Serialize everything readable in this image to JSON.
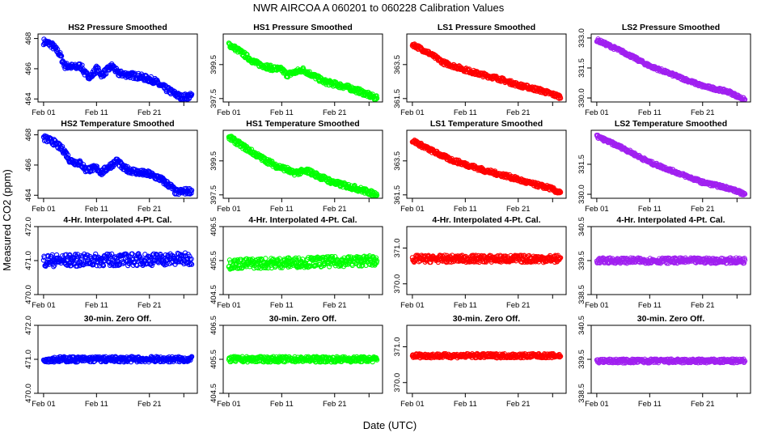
{
  "figure": {
    "title": "NWR   AIRCOA A   060201 to 060228   Calibration Values",
    "xlabel": "Date (UTC)",
    "ylabel": "Measured CO2 (ppm)"
  },
  "colors": {
    "HS2": "#0000ff",
    "HS1": "#00ff00",
    "LS1": "#ff0000",
    "LS2": "#a020f0"
  },
  "chart_data": [
    {
      "type": "scatter",
      "title": "HS2 Pressure Smoothed",
      "series": "HS2",
      "x_ticks": [
        "Feb 01",
        "Feb 11",
        "Feb 21"
      ],
      "x_range_days": [
        0,
        28
      ],
      "y_ticks": [
        "464",
        "466",
        "468"
      ],
      "ylim": [
        463.8,
        468.3
      ],
      "profile": [
        [
          0,
          467.8
        ],
        [
          1.5,
          467.6
        ],
        [
          3,
          467.0
        ],
        [
          4,
          466.2
        ],
        [
          6,
          466.1
        ],
        [
          7,
          466.2
        ],
        [
          8,
          465.6
        ],
        [
          9,
          465.5
        ],
        [
          10,
          466.0
        ],
        [
          11,
          465.6
        ],
        [
          13,
          466.2
        ],
        [
          14,
          465.7
        ],
        [
          16,
          465.6
        ],
        [
          18,
          465.5
        ],
        [
          20,
          465.3
        ],
        [
          21,
          465.2
        ],
        [
          22,
          464.9
        ],
        [
          24,
          464.5
        ],
        [
          26,
          464.1
        ],
        [
          28,
          464.2
        ]
      ],
      "noise": 0.2
    },
    {
      "type": "scatter",
      "title": "HS1 Pressure Smoothed",
      "series": "HS1",
      "x_ticks": [
        "Feb 01",
        "Feb 11",
        "Feb 21"
      ],
      "x_range_days": [
        0,
        28
      ],
      "y_ticks": [
        "397.5",
        "399.5"
      ],
      "ylim": [
        397.3,
        401.3
      ],
      "profile": [
        [
          0,
          400.7
        ],
        [
          2,
          400.3
        ],
        [
          5,
          399.6
        ],
        [
          8,
          399.3
        ],
        [
          10,
          399.2
        ],
        [
          11,
          398.9
        ],
        [
          14,
          399.2
        ],
        [
          18,
          398.5
        ],
        [
          22,
          398.2
        ],
        [
          25,
          397.9
        ],
        [
          28,
          397.5
        ]
      ],
      "noise": 0.15
    },
    {
      "type": "scatter",
      "title": "LS1 Pressure Smoothed",
      "series": "LS1",
      "x_ticks": [
        "Feb 01",
        "Feb 11",
        "Feb 21"
      ],
      "x_range_days": [
        0,
        28
      ],
      "y_ticks": [
        "361.5",
        "363.5"
      ],
      "ylim": [
        361.3,
        365.3
      ],
      "profile": [
        [
          0,
          364.7
        ],
        [
          3,
          364.2
        ],
        [
          6,
          363.6
        ],
        [
          9,
          363.3
        ],
        [
          12,
          363.0
        ],
        [
          16,
          362.7
        ],
        [
          20,
          362.3
        ],
        [
          24,
          362.0
        ],
        [
          28,
          361.6
        ]
      ],
      "noise": 0.12
    },
    {
      "type": "scatter",
      "title": "LS2 Pressure Smoothed",
      "series": "LS2",
      "x_ticks": [
        "Feb 01",
        "Feb 11",
        "Feb 21"
      ],
      "x_range_days": [
        0,
        28
      ],
      "y_ticks": [
        "330.0",
        "331.5",
        "333.0"
      ],
      "ylim": [
        329.8,
        333.2
      ],
      "profile": [
        [
          0,
          332.9
        ],
        [
          5,
          332.3
        ],
        [
          10,
          331.6
        ],
        [
          15,
          331.1
        ],
        [
          20,
          330.6
        ],
        [
          25,
          330.3
        ],
        [
          28,
          329.9
        ]
      ],
      "noise": 0.08
    },
    {
      "type": "scatter",
      "title": "HS2 Temperature Smoothed",
      "series": "HS2",
      "x_ticks": [
        "Feb 01",
        "Feb 11",
        "Feb 21"
      ],
      "x_range_days": [
        0,
        28
      ],
      "y_ticks": [
        "464",
        "466",
        "468"
      ],
      "ylim": [
        463.8,
        468.3
      ],
      "profile": [
        [
          0,
          467.8
        ],
        [
          2,
          467.5
        ],
        [
          4,
          466.9
        ],
        [
          5,
          466.3
        ],
        [
          7,
          466.1
        ],
        [
          8,
          465.7
        ],
        [
          10,
          465.8
        ],
        [
          11,
          465.5
        ],
        [
          12,
          465.8
        ],
        [
          14,
          466.3
        ],
        [
          15,
          465.8
        ],
        [
          18,
          465.5
        ],
        [
          20,
          465.4
        ],
        [
          22,
          465.1
        ],
        [
          24,
          464.6
        ],
        [
          25,
          464.2
        ],
        [
          28,
          464.3
        ]
      ],
      "noise": 0.2
    },
    {
      "type": "scatter",
      "title": "HS1 Temperature Smoothed",
      "series": "HS1",
      "x_ticks": [
        "Feb 01",
        "Feb 11",
        "Feb 21"
      ],
      "x_range_days": [
        0,
        28
      ],
      "y_ticks": [
        "397.5",
        "399.5"
      ],
      "ylim": [
        397.3,
        401.3
      ],
      "profile": [
        [
          0,
          400.9
        ],
        [
          3,
          400.3
        ],
        [
          6,
          399.7
        ],
        [
          9,
          399.2
        ],
        [
          11,
          399.0
        ],
        [
          12,
          398.8
        ],
        [
          15,
          398.9
        ],
        [
          17,
          398.6
        ],
        [
          20,
          398.2
        ],
        [
          24,
          397.9
        ],
        [
          28,
          397.5
        ]
      ],
      "noise": 0.15
    },
    {
      "type": "scatter",
      "title": "LS1 Temperature Smoothed",
      "series": "LS1",
      "x_ticks": [
        "Feb 01",
        "Feb 11",
        "Feb 21"
      ],
      "x_range_days": [
        0,
        28
      ],
      "y_ticks": [
        "361.5",
        "363.5"
      ],
      "ylim": [
        361.3,
        365.3
      ],
      "profile": [
        [
          0,
          364.7
        ],
        [
          3,
          364.2
        ],
        [
          7,
          363.6
        ],
        [
          10,
          363.3
        ],
        [
          14,
          362.9
        ],
        [
          18,
          362.6
        ],
        [
          22,
          362.2
        ],
        [
          26,
          361.9
        ],
        [
          28,
          361.6
        ]
      ],
      "noise": 0.12
    },
    {
      "type": "scatter",
      "title": "LS2 Temperature Smoothed",
      "series": "LS2",
      "x_ticks": [
        "Feb 01",
        "Feb 11",
        "Feb 21"
      ],
      "x_range_days": [
        0,
        28
      ],
      "y_ticks": [
        "330.0",
        "331.5"
      ],
      "ylim": [
        329.8,
        333.2
      ],
      "profile": [
        [
          0,
          332.9
        ],
        [
          5,
          332.3
        ],
        [
          10,
          331.6
        ],
        [
          15,
          331.1
        ],
        [
          20,
          330.6
        ],
        [
          25,
          330.3
        ],
        [
          28,
          330.0
        ]
      ],
      "noise": 0.08
    },
    {
      "type": "scatter",
      "title": "4-Hr. Interpolated 4-Pt. Cal.",
      "series": "HS2",
      "x_ticks": [
        "Feb 01",
        "Feb 11",
        "Feb 21"
      ],
      "x_range_days": [
        0,
        28
      ],
      "y_ticks": [
        "470.0",
        "471.0",
        "472.0"
      ],
      "ylim": [
        470.0,
        472.0
      ],
      "profile": [
        [
          0,
          471.0
        ],
        [
          28,
          471.05
        ]
      ],
      "noise": 0.18
    },
    {
      "type": "scatter",
      "title": "4-Hr. Interpolated 4-Pt. Cal.",
      "series": "HS1",
      "x_ticks": [
        "Feb 01",
        "Feb 11",
        "Feb 21"
      ],
      "x_range_days": [
        0,
        28
      ],
      "y_ticks": [
        "404.5",
        "405.5",
        "406.5"
      ],
      "ylim": [
        404.5,
        406.5
      ],
      "profile": [
        [
          0,
          405.4
        ],
        [
          28,
          405.5
        ]
      ],
      "noise": 0.15
    },
    {
      "type": "scatter",
      "title": "4-Hr. Interpolated 4-Pt. Cal.",
      "series": "LS1",
      "x_ticks": [
        "Feb 01",
        "Feb 11",
        "Feb 21"
      ],
      "x_range_days": [
        0,
        28
      ],
      "y_ticks": [
        "370.0",
        "371.0"
      ],
      "ylim": [
        369.7,
        371.6
      ],
      "profile": [
        [
          0,
          370.7
        ],
        [
          28,
          370.7
        ]
      ],
      "noise": 0.1
    },
    {
      "type": "scatter",
      "title": "4-Hr. Interpolated 4-Pt. Cal.",
      "series": "LS2",
      "x_ticks": [
        "Feb 01",
        "Feb 11",
        "Feb 21"
      ],
      "x_range_days": [
        0,
        28
      ],
      "y_ticks": [
        "338.5",
        "339.5",
        "340.5"
      ],
      "ylim": [
        338.5,
        340.5
      ],
      "profile": [
        [
          0,
          339.5
        ],
        [
          28,
          339.5
        ]
      ],
      "noise": 0.08
    },
    {
      "type": "scatter",
      "title": "30-min. Zero Off.",
      "series": "HS2",
      "x_ticks": [
        "Feb 01",
        "Feb 11",
        "Feb 21"
      ],
      "x_range_days": [
        0,
        28
      ],
      "y_ticks": [
        "470.0",
        "471.0",
        "472.0"
      ],
      "ylim": [
        470.0,
        472.0
      ],
      "profile": [
        [
          0,
          471.0
        ],
        [
          28,
          471.0
        ]
      ],
      "noise": 0.08
    },
    {
      "type": "scatter",
      "title": "30-min. Zero Off.",
      "series": "HS1",
      "x_ticks": [
        "Feb 01",
        "Feb 11",
        "Feb 21"
      ],
      "x_range_days": [
        0,
        28
      ],
      "y_ticks": [
        "404.5",
        "405.5",
        "406.5"
      ],
      "ylim": [
        404.5,
        406.5
      ],
      "profile": [
        [
          0,
          405.5
        ],
        [
          28,
          405.5
        ]
      ],
      "noise": 0.08
    },
    {
      "type": "scatter",
      "title": "30-min. Zero Off.",
      "series": "LS1",
      "x_ticks": [
        "Feb 01",
        "Feb 11",
        "Feb 21"
      ],
      "x_range_days": [
        0,
        28
      ],
      "y_ticks": [
        "370.0",
        "371.0"
      ],
      "ylim": [
        369.7,
        371.6
      ],
      "profile": [
        [
          0,
          370.75
        ],
        [
          28,
          370.75
        ]
      ],
      "noise": 0.06
    },
    {
      "type": "scatter",
      "title": "30-min. Zero Off.",
      "series": "LS2",
      "x_ticks": [
        "Feb 01",
        "Feb 11",
        "Feb 21"
      ],
      "x_range_days": [
        0,
        28
      ],
      "y_ticks": [
        "338.5",
        "339.5",
        "340.5"
      ],
      "ylim": [
        338.5,
        340.5
      ],
      "profile": [
        [
          0,
          339.45
        ],
        [
          28,
          339.45
        ]
      ],
      "noise": 0.06
    }
  ]
}
